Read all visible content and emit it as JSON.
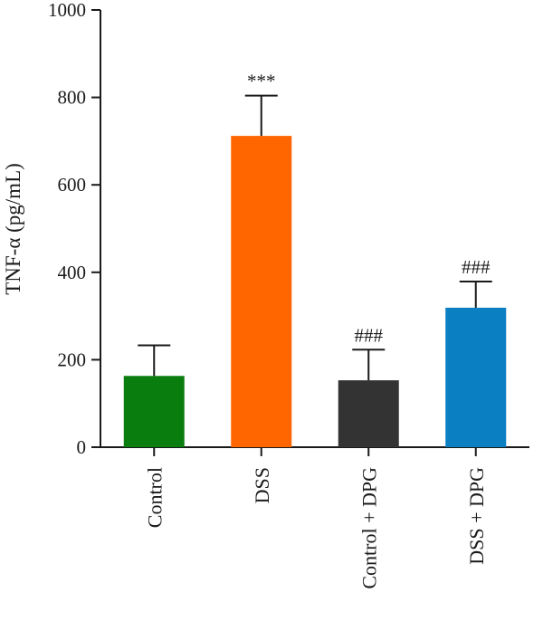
{
  "chart_data": {
    "type": "bar",
    "title": "",
    "xlabel": "",
    "ylabel": "TNF-α (pg/mL)",
    "ylim": [
      0,
      1000
    ],
    "yticks": [
      0,
      200,
      400,
      600,
      800,
      1000
    ],
    "grid": false,
    "legend": "none",
    "categories": [
      "Control",
      "DSS",
      "Control + DPG",
      "DSS + DPG"
    ],
    "values": [
      163,
      712,
      153,
      319
    ],
    "errors": [
      70,
      92,
      70,
      60
    ],
    "colors": [
      "#0a7d0f",
      "#ff6600",
      "#333333",
      "#0a7fc2"
    ],
    "annotations": [
      "",
      "***",
      "###",
      "###"
    ]
  }
}
